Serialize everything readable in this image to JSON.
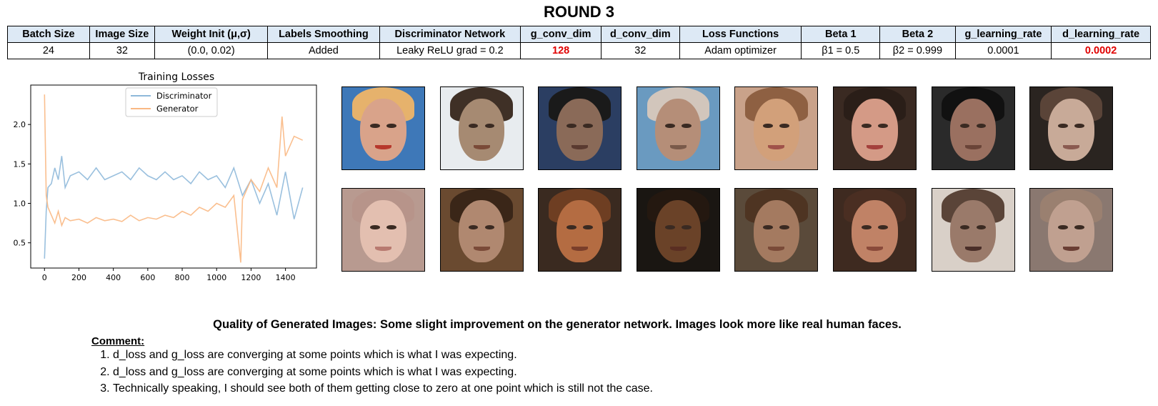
{
  "title": "ROUND 3",
  "table": {
    "headers": [
      "Batch Size",
      "Image Size",
      "Weight Init (μ,σ)",
      "Labels Smoothing",
      "Discriminator Network",
      "g_conv_dim",
      "d_conv_dim",
      "Loss Functions",
      "Beta 1",
      "Beta 2",
      "g_learning_rate",
      "d_learning_rate"
    ],
    "values": [
      "24",
      "32",
      "(0.0, 0.02)",
      "Added",
      "Leaky ReLU grad = 0.2",
      "128",
      "32",
      "Adam optimizer",
      "β1 = 0.5",
      "β2 = 0.999",
      "0.0001",
      "0.0002"
    ],
    "highlighted": [
      "128",
      "0.0002"
    ],
    "highlight_color": "#e00000",
    "header_bg": "#dde9f5"
  },
  "chart_data": {
    "type": "line",
    "title": "Training Losses",
    "xlabel": "",
    "ylabel": "",
    "xlim": [
      -80,
      1580
    ],
    "ylim": [
      0.18,
      2.5
    ],
    "xticks": [
      0,
      200,
      400,
      600,
      800,
      1000,
      1200,
      1400
    ],
    "yticks": [
      0.5,
      1.0,
      1.5,
      2.0
    ],
    "ytick_labels": [
      "0.5",
      "1.0",
      "1.5",
      "2.0"
    ],
    "grid": false,
    "legend": "upper center",
    "series": [
      {
        "name": "Discriminator",
        "color": "#8fb9da",
        "x": [
          0,
          10,
          20,
          40,
          60,
          80,
          100,
          120,
          150,
          200,
          250,
          300,
          350,
          400,
          450,
          500,
          550,
          600,
          650,
          700,
          750,
          800,
          850,
          900,
          950,
          1000,
          1050,
          1100,
          1150,
          1200,
          1250,
          1300,
          1350,
          1400,
          1450,
          1500
        ],
        "values": [
          0.3,
          0.9,
          1.2,
          1.25,
          1.45,
          1.3,
          1.6,
          1.2,
          1.35,
          1.4,
          1.3,
          1.45,
          1.3,
          1.35,
          1.4,
          1.3,
          1.45,
          1.35,
          1.3,
          1.4,
          1.3,
          1.35,
          1.25,
          1.4,
          1.3,
          1.35,
          1.2,
          1.45,
          1.1,
          1.3,
          1.0,
          1.25,
          0.85,
          1.4,
          0.8,
          1.2
        ]
      },
      {
        "name": "Generator",
        "color": "#f9b883",
        "x": [
          0,
          10,
          20,
          40,
          60,
          80,
          100,
          120,
          150,
          200,
          250,
          300,
          350,
          400,
          450,
          500,
          550,
          600,
          650,
          700,
          750,
          800,
          850,
          900,
          950,
          1000,
          1050,
          1100,
          1140,
          1150,
          1200,
          1250,
          1300,
          1350,
          1380,
          1400,
          1450,
          1500
        ],
        "values": [
          2.38,
          1.1,
          0.95,
          0.85,
          0.75,
          0.9,
          0.72,
          0.82,
          0.78,
          0.8,
          0.75,
          0.82,
          0.78,
          0.8,
          0.77,
          0.85,
          0.78,
          0.82,
          0.8,
          0.85,
          0.82,
          0.9,
          0.85,
          0.95,
          0.9,
          1.0,
          0.95,
          1.1,
          0.25,
          1.05,
          1.3,
          1.15,
          1.45,
          1.2,
          2.1,
          1.6,
          1.85,
          1.8
        ]
      }
    ]
  },
  "faces_grid": {
    "rows": 2,
    "cols": 8,
    "tones": [
      [
        "#3e78b8",
        "#d9a38a",
        "#e6b26c",
        "#b7382c"
      ],
      [
        "#e8ecef",
        "#a68a72",
        "#3f3026",
        "#7a4a38"
      ],
      [
        "#2b3e62",
        "#8a6a58",
        "#1a1a1a",
        "#5a3a30"
      ],
      [
        "#6a9ac0",
        "#b58e78",
        "#d2c6bc",
        "#7a5a4a"
      ],
      [
        "#c9a28a",
        "#d2a07a",
        "#8e6042",
        "#a0524a"
      ],
      [
        "#3a2a22",
        "#d49a86",
        "#2a1e18",
        "#a4403c"
      ],
      [
        "#2a2a2a",
        "#9a7060",
        "#111111",
        "#6a4438"
      ],
      [
        "#2a2420",
        "#c8aa98",
        "#5a4438",
        "#8a5a50"
      ],
      [
        "#b89a90",
        "#e3bfb0",
        "#b7948a",
        "#b87a70"
      ],
      [
        "#6a4a30",
        "#b08870",
        "#3a2618",
        "#7a4a38"
      ],
      [
        "#3a2a20",
        "#b46c42",
        "#6e3e22",
        "#7a3e2a"
      ],
      [
        "#1a1612",
        "#6a4228",
        "#241810",
        "#5a2e22"
      ],
      [
        "#5a4a3a",
        "#a47a60",
        "#4e3422",
        "#7a4a38"
      ],
      [
        "#3e2a20",
        "#c08266",
        "#4a2e22",
        "#8a4a3a"
      ],
      [
        "#d9d0c8",
        "#9a7a6a",
        "#5a4438",
        "#4a2e28"
      ],
      [
        "#8a7870",
        "#c0a090",
        "#9a8070",
        "#6a3e34"
      ]
    ]
  },
  "quality_text": "Quality of Generated Images: Some slight improvement on the generator network. Images look more like real human faces.",
  "comment": {
    "heading": "Comment:",
    "items": [
      "d_loss and g_loss are converging at some points which is what I was expecting.",
      "d_loss and g_loss are converging at some points which is what I was expecting.",
      "Technically speaking, I should see both of them getting close to zero at one point which is still not the case."
    ]
  }
}
